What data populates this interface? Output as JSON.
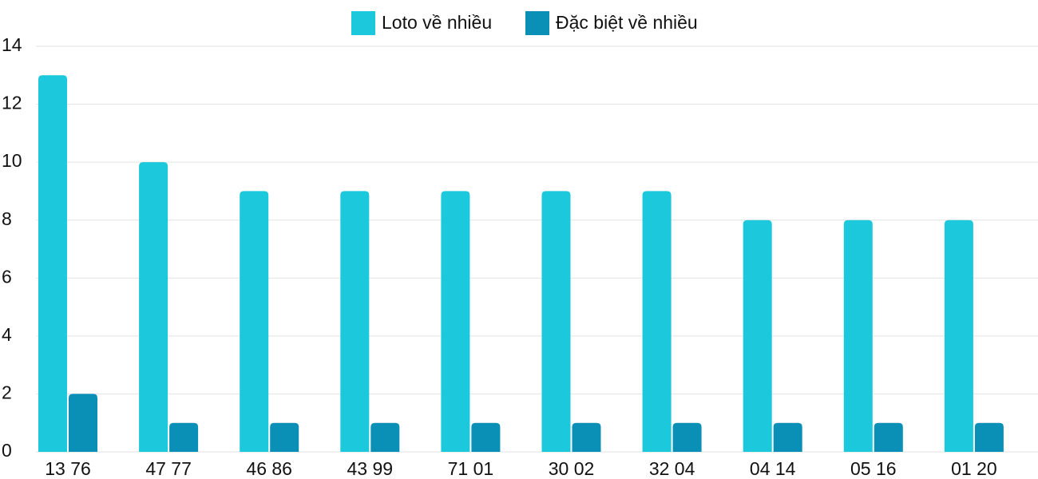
{
  "chart_data": {
    "type": "bar",
    "categories": [
      "13 76",
      "47 77",
      "46 86",
      "43 99",
      "71 01",
      "30 02",
      "32 04",
      "04 14",
      "05 16",
      "01 20"
    ],
    "series": [
      {
        "name": "Loto về nhiều",
        "color": "#1cc8dc",
        "values": [
          13,
          10,
          9,
          9,
          9,
          9,
          9,
          8,
          8,
          8
        ]
      },
      {
        "name": "Đặc biệt về nhiều",
        "color": "#0a90b6",
        "values": [
          2,
          1,
          1,
          1,
          1,
          1,
          1,
          1,
          1,
          1
        ]
      }
    ],
    "ylim": [
      0,
      14
    ],
    "yticks": [
      0,
      2,
      4,
      6,
      8,
      10,
      12,
      14
    ],
    "grid": true
  }
}
